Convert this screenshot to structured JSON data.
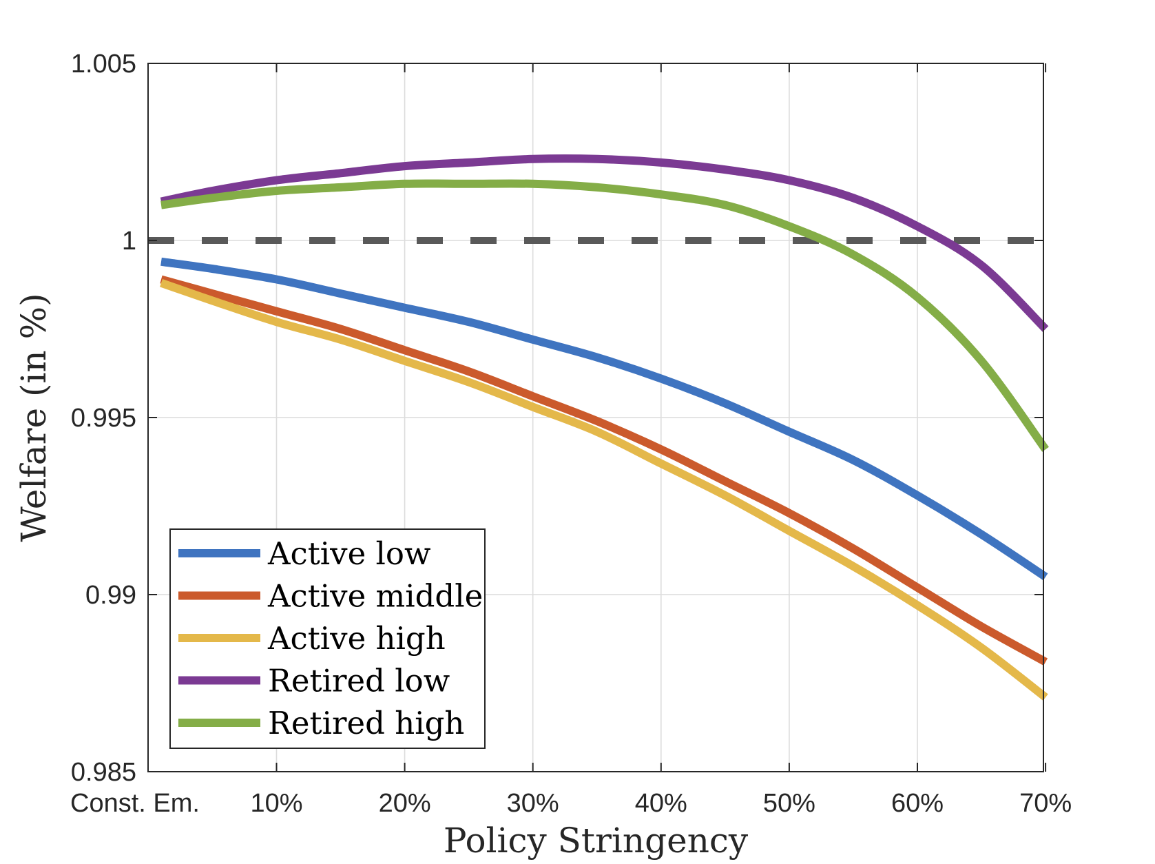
{
  "chart_data": {
    "type": "line",
    "title": "",
    "xlabel": "Policy Stringency",
    "ylabel": "Welfare (in %)",
    "x_tick_labels": [
      "Const. Em.",
      "10%",
      "20%",
      "30%",
      "40%",
      "50%",
      "60%",
      "70%"
    ],
    "x_tick_values": [
      0,
      10,
      20,
      30,
      40,
      50,
      60,
      70
    ],
    "xlim": [
      0,
      70
    ],
    "ylim": [
      0.985,
      1.005
    ],
    "y_tick_values": [
      0.985,
      0.99,
      0.995,
      1,
      1.005
    ],
    "y_tick_labels": [
      "0.985",
      "0.99",
      "0.995",
      "1",
      "1.005"
    ],
    "grid": true,
    "reference_line": {
      "y": 1,
      "style": "dashed",
      "color": "#595959"
    },
    "legend_position": "bottom-left",
    "x": [
      1,
      5,
      10,
      15,
      20,
      25,
      30,
      35,
      40,
      45,
      50,
      55,
      60,
      65,
      70
    ],
    "series": [
      {
        "name": "Active low",
        "color": "#3f74c0",
        "values": [
          0.9994,
          0.9992,
          0.9989,
          0.9985,
          0.9981,
          0.9977,
          0.9972,
          0.9967,
          0.9961,
          0.9954,
          0.9946,
          0.9938,
          0.9928,
          0.9917,
          0.9905
        ]
      },
      {
        "name": "Active middle",
        "color": "#cb5a2c",
        "values": [
          0.9989,
          0.9985,
          0.998,
          0.9975,
          0.9969,
          0.9963,
          0.9956,
          0.9949,
          0.9941,
          0.9932,
          0.9923,
          0.9913,
          0.9902,
          0.9891,
          0.9881
        ]
      },
      {
        "name": "Active high",
        "color": "#e4b84a",
        "values": [
          0.9988,
          0.9983,
          0.9977,
          0.9972,
          0.9966,
          0.996,
          0.9953,
          0.9946,
          0.9937,
          0.9928,
          0.9918,
          0.9908,
          0.9897,
          0.9885,
          0.9871
        ]
      },
      {
        "name": "Retired low",
        "color": "#7b3a93",
        "values": [
          1.0011,
          1.0014,
          1.0017,
          1.0019,
          1.0021,
          1.0022,
          1.0023,
          1.0023,
          1.0022,
          1.002,
          1.0017,
          1.0012,
          1.0004,
          0.9993,
          0.9975
        ]
      },
      {
        "name": "Retired high",
        "color": "#84ad47",
        "values": [
          1.001,
          1.0012,
          1.0014,
          1.0015,
          1.0016,
          1.0016,
          1.0016,
          1.0015,
          1.0013,
          1.001,
          1.0004,
          0.9996,
          0.9984,
          0.9966,
          0.9941
        ]
      }
    ]
  }
}
